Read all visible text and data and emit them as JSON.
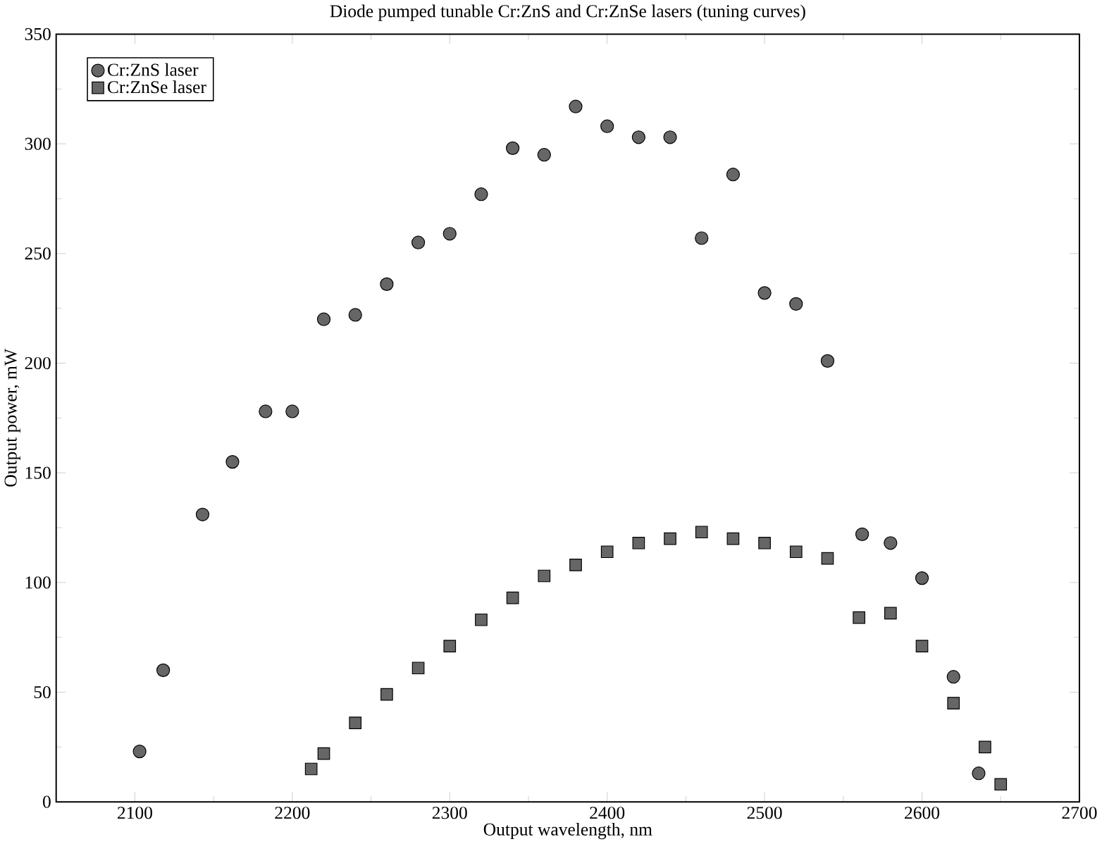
{
  "chart_data": {
    "type": "scatter",
    "title": "Diode pumped tunable Cr:ZnS and Cr:ZnSe lasers  (tuning curves)",
    "xlabel": "Output wavelength, nm",
    "ylabel": "Output power, mW",
    "xlim": [
      2050,
      2700
    ],
    "ylim": [
      0,
      350
    ],
    "xticks": [
      2100,
      2200,
      2300,
      2400,
      2500,
      2600,
      2700
    ],
    "yticks": [
      0,
      50,
      100,
      150,
      200,
      250,
      300,
      350
    ],
    "grid": false,
    "legend": "top left",
    "series": [
      {
        "name": "Cr:ZnS laser",
        "color": "#666666",
        "marker": "circle",
        "x": [
          2103,
          2118,
          2143,
          2162,
          2183,
          2200,
          2220,
          2240,
          2260,
          2280,
          2300,
          2320,
          2340,
          2360,
          2380,
          2400,
          2420,
          2440,
          2460,
          2480,
          2500,
          2520,
          2540,
          2562,
          2580,
          2600,
          2620,
          2636
        ],
        "values": [
          23,
          60,
          131,
          155,
          178,
          178,
          220,
          222,
          236,
          255,
          259,
          277,
          298,
          295,
          317,
          308,
          303,
          303,
          257,
          286,
          232,
          227,
          201,
          122,
          118,
          102,
          57,
          13
        ]
      },
      {
        "name": "Cr:ZnSe laser",
        "color": "#666666",
        "marker": "square",
        "x": [
          2212,
          2220,
          2240,
          2260,
          2280,
          2300,
          2320,
          2340,
          2360,
          2380,
          2400,
          2420,
          2440,
          2460,
          2480,
          2500,
          2520,
          2540,
          2560,
          2580,
          2600,
          2620,
          2640,
          2650
        ],
        "values": [
          15,
          22,
          36,
          49,
          61,
          71,
          83,
          93,
          103,
          108,
          114,
          118,
          120,
          123,
          120,
          118,
          114,
          111,
          84,
          86,
          71,
          45,
          25,
          8
        ]
      }
    ]
  }
}
